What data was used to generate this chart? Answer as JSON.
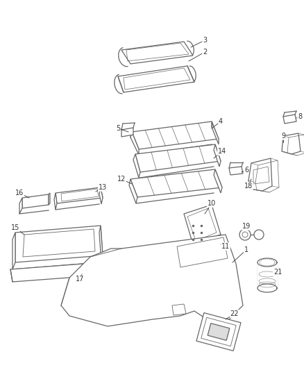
{
  "background_color": "#ffffff",
  "line_color": "#666666",
  "label_color": "#333333",
  "fig_width": 4.38,
  "fig_height": 5.33,
  "dpi": 100
}
